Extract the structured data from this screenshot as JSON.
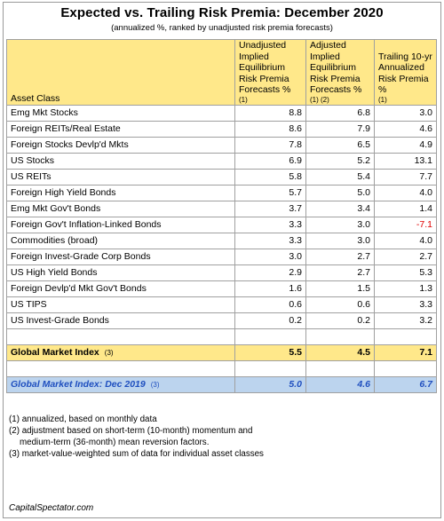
{
  "title": "Expected vs. Trailing Risk Premia: December 2020",
  "subtitle": "(annualized %, ranked by unadjusted risk premia forecasts)",
  "headers": {
    "asset_class": "Asset Class",
    "unadjusted": "Unadjusted Implied Equilibrium Risk Premia Forecasts %",
    "unadjusted_note": "(1)",
    "adjusted": "Adjusted Implied Equilibrium Risk Premia Forecasts %",
    "adjusted_note": "(1) (2)",
    "trailing": "Trailing 10-yr Annualized Risk Premia %",
    "trailing_note": "(1)"
  },
  "rows": [
    {
      "asset": "Emg Mkt Stocks",
      "unadj": "8.8",
      "adj": "6.8",
      "trail": "3.0"
    },
    {
      "asset": "Foreign REITs/Real Estate",
      "unadj": "8.6",
      "adj": "7.9",
      "trail": "4.6"
    },
    {
      "asset": "Foreign Stocks Devlp'd Mkts",
      "unadj": "7.8",
      "adj": "6.5",
      "trail": "4.9"
    },
    {
      "asset": "US Stocks",
      "unadj": "6.9",
      "adj": "5.2",
      "trail": "13.1"
    },
    {
      "asset": "US REITs",
      "unadj": "5.8",
      "adj": "5.4",
      "trail": "7.7"
    },
    {
      "asset": "Foreign High Yield Bonds",
      "unadj": "5.7",
      "adj": "5.0",
      "trail": "4.0"
    },
    {
      "asset": "Emg Mkt Gov't Bonds",
      "unadj": "3.7",
      "adj": "3.4",
      "trail": "1.4"
    },
    {
      "asset": "Foreign Gov't Inflation-Linked Bonds",
      "unadj": "3.3",
      "adj": "3.0",
      "trail": "-7.1"
    },
    {
      "asset": "Commodities (broad)",
      "unadj": "3.3",
      "adj": "3.0",
      "trail": "4.0"
    },
    {
      "asset": "Foreign Invest-Grade Corp Bonds",
      "unadj": "3.0",
      "adj": "2.7",
      "trail": "2.7"
    },
    {
      "asset": "US High Yield Bonds",
      "unadj": "2.9",
      "adj": "2.7",
      "trail": "5.3"
    },
    {
      "asset": "Foreign Devlp'd Mkt Gov't Bonds",
      "unadj": "1.6",
      "adj": "1.5",
      "trail": "1.3"
    },
    {
      "asset": "US TIPS",
      "unadj": "0.6",
      "adj": "0.6",
      "trail": "3.3"
    },
    {
      "asset": "US Invest-Grade Bonds",
      "unadj": "0.2",
      "adj": "0.2",
      "trail": "3.2"
    }
  ],
  "gmi": {
    "label": "Global Market Index",
    "note": "(3)",
    "unadj": "5.5",
    "adj": "4.5",
    "trail": "7.1"
  },
  "gmi_2019": {
    "label": "Global Market Index: Dec 2019",
    "note": "(3)",
    "unadj": "5.0",
    "adj": "4.6",
    "trail": "6.7"
  },
  "footnotes": {
    "n1": "(1) annualized, based on monthly data",
    "n2a": "(2) adjustment based on short-term (10-month) momentum and",
    "n2b": "medium-term (36-month) mean reversion factors.",
    "n3": "(3) market-value-weighted sum of data for individual asset classes"
  },
  "source": "CapitalSpectator.com",
  "colors": {
    "header_bg": "#ffe88a",
    "gmi2019_bg": "#bcd4ee",
    "gmi2019_text": "#1f4fbf",
    "negative": "#e00000"
  }
}
